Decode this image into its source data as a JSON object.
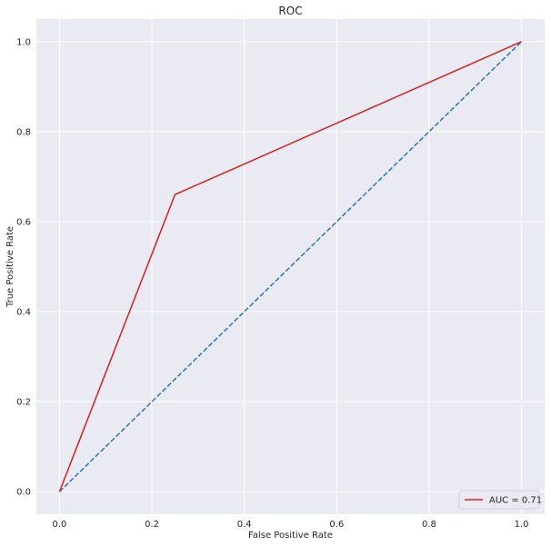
{
  "chart_data": {
    "type": "line",
    "title": "ROC",
    "xlabel": "False Positive Rate",
    "ylabel": "True Positive Rate",
    "xlim": [
      -0.05,
      1.05
    ],
    "ylim": [
      -0.05,
      1.05
    ],
    "xticks": [
      0.0,
      0.2,
      0.4,
      0.6,
      0.8,
      1.0
    ],
    "yticks": [
      0.0,
      0.2,
      0.4,
      0.6,
      0.8,
      1.0
    ],
    "xtick_labels": [
      "0.0",
      "0.2",
      "0.4",
      "0.6",
      "0.8",
      "1.0"
    ],
    "ytick_labels": [
      "0.0",
      "0.2",
      "0.4",
      "0.6",
      "0.8",
      "1.0"
    ],
    "grid": true,
    "legend_position": "bottom-right",
    "series": [
      {
        "name": "AUC = 0.71",
        "color": "#d62020",
        "style": "solid",
        "x": [
          0.0,
          0.25,
          1.0
        ],
        "y": [
          0.0,
          0.66,
          1.0
        ]
      },
      {
        "color": "#2f74b8",
        "style": "dashed",
        "x": [
          0.0,
          1.0
        ],
        "y": [
          0.0,
          1.0
        ]
      }
    ]
  }
}
